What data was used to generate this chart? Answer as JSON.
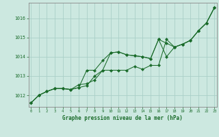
{
  "title": "Graphe pression niveau de la mer (hPa)",
  "background_color": "#cce8e0",
  "line_color": "#1a6b2a",
  "grid_color": "#aacfc8",
  "xlim": [
    -0.3,
    23.3
  ],
  "ylim": [
    1011.4,
    1016.8
  ],
  "yticks": [
    1012,
    1013,
    1014,
    1015,
    1016
  ],
  "xticks": [
    0,
    1,
    2,
    3,
    4,
    5,
    6,
    7,
    8,
    9,
    10,
    11,
    12,
    13,
    14,
    15,
    16,
    17,
    18,
    19,
    20,
    21,
    22,
    23
  ],
  "series1": [
    1011.6,
    1012.0,
    1012.2,
    1012.35,
    1012.35,
    1012.3,
    1012.4,
    1013.3,
    1013.3,
    1013.8,
    1014.2,
    1014.25,
    1014.1,
    1014.05,
    1014.0,
    1013.9,
    1014.9,
    1014.0,
    1014.5,
    1014.65,
    1014.85,
    1015.35,
    1015.75,
    1016.55
  ],
  "series2": [
    1011.6,
    1012.0,
    1012.2,
    1012.35,
    1012.35,
    1012.3,
    1012.4,
    1012.5,
    1013.0,
    1013.3,
    1013.3,
    1013.3,
    1013.3,
    1013.5,
    1013.35,
    1013.55,
    1013.55,
    1014.9,
    1014.5,
    1014.65,
    1014.85,
    1015.35,
    1015.75,
    1016.55
  ],
  "series3": [
    1011.6,
    1012.0,
    1012.2,
    1012.35,
    1012.35,
    1012.3,
    1012.55,
    1012.6,
    1012.8,
    1013.3,
    1014.2,
    1014.25,
    1014.1,
    1014.05,
    1014.0,
    1013.9,
    1014.9,
    1014.7,
    1014.5,
    1014.65,
    1014.85,
    1015.35,
    1015.75,
    1016.55
  ],
  "figwidth": 3.2,
  "figheight": 2.0,
  "dpi": 100
}
